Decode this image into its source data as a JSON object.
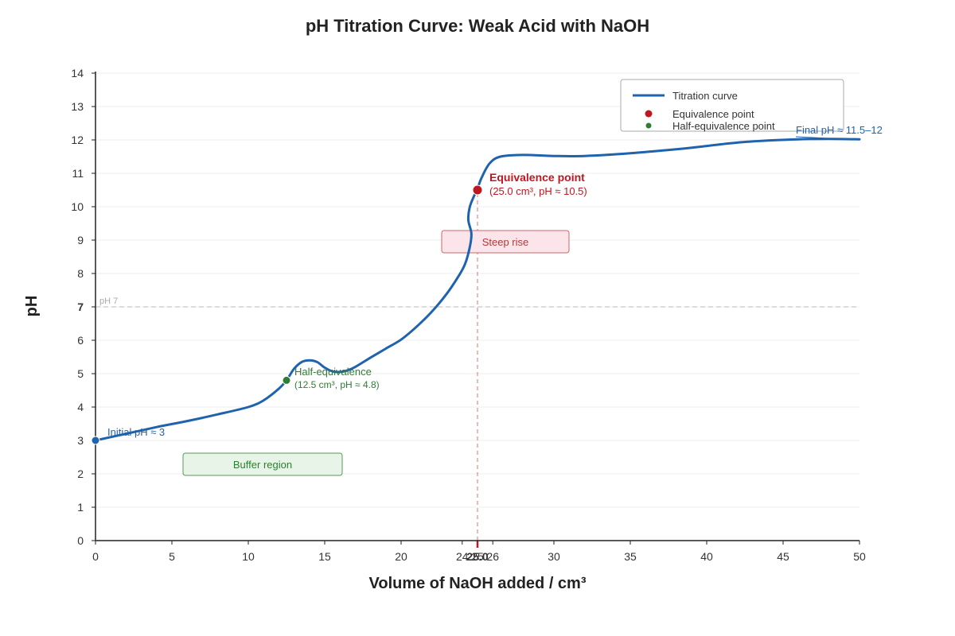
{
  "chart_data": {
    "type": "line",
    "title": "pH Titration Curve: Weak Acid with NaOH",
    "xlabel": "Volume of NaOH added / cm³",
    "ylabel": "pH",
    "xlim": [
      0,
      50
    ],
    "ylim": [
      0,
      14
    ],
    "x_ticks": [
      "0",
      "5",
      "10",
      "15",
      "20",
      "25",
      "30",
      "35",
      "40",
      "45",
      "50"
    ],
    "y_ticks": [
      "0",
      "1",
      "2",
      "3",
      "4",
      "5",
      "6",
      "7",
      "8",
      "9",
      "10",
      "11",
      "12",
      "13",
      "14"
    ],
    "grid": "horizontal",
    "legend_position": "top-right",
    "series": [
      {
        "name": "Titration curve",
        "color": "#1f63ad",
        "points": [
          [
            0,
            3.0
          ],
          [
            2,
            3.2
          ],
          [
            4,
            3.4
          ],
          [
            6,
            3.58
          ],
          [
            8,
            3.78
          ],
          [
            10,
            4.0
          ],
          [
            11,
            4.2
          ],
          [
            12,
            4.55
          ],
          [
            12.5,
            4.8
          ],
          [
            13,
            5.15
          ],
          [
            13.5,
            5.35
          ],
          [
            14,
            5.4
          ],
          [
            14.5,
            5.35
          ],
          [
            15,
            5.18
          ],
          [
            15.5,
            5.07
          ],
          [
            16,
            5.05
          ],
          [
            16.5,
            5.1
          ],
          [
            17,
            5.2
          ],
          [
            18,
            5.48
          ],
          [
            19,
            5.75
          ],
          [
            20,
            6.02
          ],
          [
            21,
            6.4
          ],
          [
            22,
            6.85
          ],
          [
            23,
            7.4
          ],
          [
            23.8,
            7.95
          ],
          [
            24.2,
            8.3
          ],
          [
            24.5,
            8.8
          ],
          [
            24.6,
            9.2
          ],
          [
            24.4,
            9.6
          ],
          [
            24.5,
            10.0
          ],
          [
            24.8,
            10.35
          ],
          [
            25.0,
            10.55
          ],
          [
            25.3,
            10.9
          ],
          [
            25.8,
            11.3
          ],
          [
            26.5,
            11.5
          ],
          [
            28,
            11.55
          ],
          [
            30,
            11.52
          ],
          [
            32,
            11.52
          ],
          [
            35,
            11.6
          ],
          [
            38,
            11.72
          ],
          [
            40,
            11.82
          ],
          [
            42,
            11.92
          ],
          [
            44,
            11.98
          ],
          [
            46,
            12.02
          ],
          [
            48,
            12.03
          ],
          [
            50,
            12.02
          ]
        ]
      }
    ],
    "markers": [
      {
        "name": "Initial",
        "x": 0,
        "y": 3,
        "color": "#1f63ad"
      },
      {
        "name": "Half-equivalence point",
        "x": 12.5,
        "y": 4.8,
        "color": "#2e7d32"
      },
      {
        "name": "Equivalence point",
        "x": 25.0,
        "y": 10.5,
        "color": "#c0161f"
      }
    ],
    "reference_lines": {
      "ph7": {
        "y": 7,
        "label": "pH 7"
      },
      "equivalence_volume": {
        "x": 25.0,
        "label": "25.0"
      }
    },
    "extra_x_ticks": [
      "24",
      "26"
    ],
    "highlight_y_tick": "7",
    "legend": [
      {
        "label": "Titration curve",
        "kind": "line",
        "color": "#1f63ad"
      },
      {
        "label": "Equivalence point",
        "kind": "dot",
        "color": "#c0161f"
      },
      {
        "label": "Half-equivalence point",
        "kind": "dot",
        "color": "#2e7d32"
      }
    ],
    "annotations": {
      "initial": "Initial pH ≈ 3",
      "half_title": "Half-equivalence",
      "half_detail": "(12.5 cm³, pH ≈ 4.8)",
      "equiv_title": "Equivalence point",
      "equiv_detail": "(25.0 cm³, pH ≈ 10.5)",
      "steep": "Steep rise",
      "buffer": "Buffer region",
      "final": "Final pH ≈ 11.5–12"
    }
  }
}
